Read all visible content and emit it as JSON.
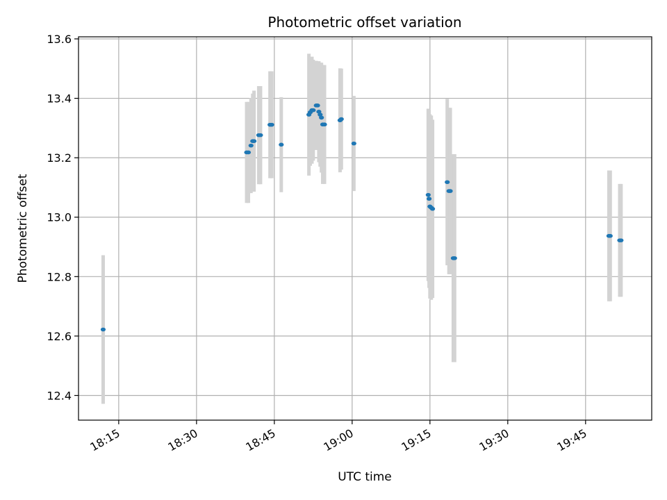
{
  "chart_data": {
    "type": "scatter",
    "title": "Photometric offset variation",
    "xlabel": "UTC time",
    "ylabel": "Photometric offset",
    "x_ticks": [
      "18:15",
      "18:30",
      "18:45",
      "19:00",
      "19:15",
      "19:30",
      "19:45"
    ],
    "y_ticks": [
      "12.4",
      "12.6",
      "12.8",
      "13.0",
      "13.2",
      "13.4",
      "13.6"
    ],
    "xlim": [
      "18:07:15",
      "19:57:45"
    ],
    "ylim": [
      12.317,
      13.607
    ],
    "grid": true,
    "error_bar_color": "#d3d3d3",
    "point_color": "#1f77b4",
    "points": [
      {
        "x": "18:12:00",
        "y": 12.622,
        "yerr": 0.25
      },
      {
        "x": "18:39:40",
        "y": 13.218,
        "yerr": 0.17
      },
      {
        "x": "18:40:00",
        "y": 13.218,
        "yerr": 0.17
      },
      {
        "x": "18:40:30",
        "y": 13.241,
        "yerr": 0.16
      },
      {
        "x": "18:40:50",
        "y": 13.256,
        "yerr": 0.16
      },
      {
        "x": "18:41:05",
        "y": 13.256,
        "yerr": 0.17
      },
      {
        "x": "18:42:00",
        "y": 13.276,
        "yerr": 0.165
      },
      {
        "x": "18:42:20",
        "y": 13.276,
        "yerr": 0.165
      },
      {
        "x": "18:44:10",
        "y": 13.311,
        "yerr": 0.18
      },
      {
        "x": "18:44:30",
        "y": 13.311,
        "yerr": 0.18
      },
      {
        "x": "18:46:20",
        "y": 13.244,
        "yerr": 0.16
      },
      {
        "x": "18:51:40",
        "y": 13.345,
        "yerr": 0.205
      },
      {
        "x": "18:51:55",
        "y": 13.353,
        "yerr": 0.18
      },
      {
        "x": "18:52:15",
        "y": 13.36,
        "yerr": 0.18
      },
      {
        "x": "18:52:30",
        "y": 13.36,
        "yerr": 0.17
      },
      {
        "x": "18:53:05",
        "y": 13.376,
        "yerr": 0.15
      },
      {
        "x": "18:53:20",
        "y": 13.376,
        "yerr": 0.145
      },
      {
        "x": "18:53:35",
        "y": 13.355,
        "yerr": 0.17
      },
      {
        "x": "18:53:50",
        "y": 13.345,
        "yerr": 0.175
      },
      {
        "x": "18:54:05",
        "y": 13.335,
        "yerr": 0.185
      },
      {
        "x": "18:54:20",
        "y": 13.312,
        "yerr": 0.2
      },
      {
        "x": "18:54:40",
        "y": 13.312,
        "yerr": 0.2
      },
      {
        "x": "18:57:40",
        "y": 13.326,
        "yerr": 0.175
      },
      {
        "x": "18:57:55",
        "y": 13.33,
        "yerr": 0.17
      },
      {
        "x": "19:00:20",
        "y": 13.248,
        "yerr": 0.16
      },
      {
        "x": "19:14:40",
        "y": 13.075,
        "yerr": 0.29
      },
      {
        "x": "19:14:50",
        "y": 13.062,
        "yerr": 0.3
      },
      {
        "x": "19:15:00",
        "y": 13.036,
        "yerr": 0.31
      },
      {
        "x": "19:15:15",
        "y": 13.032,
        "yerr": 0.31
      },
      {
        "x": "19:15:30",
        "y": 13.028,
        "yerr": 0.3
      },
      {
        "x": "19:18:20",
        "y": 13.118,
        "yerr": 0.28
      },
      {
        "x": "19:18:40",
        "y": 13.088,
        "yerr": 0.28
      },
      {
        "x": "19:18:55",
        "y": 13.088,
        "yerr": 0.28
      },
      {
        "x": "19:19:30",
        "y": 12.862,
        "yerr": 0.35
      },
      {
        "x": "19:19:45",
        "y": 12.862,
        "yerr": 0.35
      },
      {
        "x": "19:49:30",
        "y": 12.937,
        "yerr": 0.22
      },
      {
        "x": "19:49:45",
        "y": 12.937,
        "yerr": 0.22
      },
      {
        "x": "19:51:35",
        "y": 12.922,
        "yerr": 0.19
      },
      {
        "x": "19:51:50",
        "y": 12.922,
        "yerr": 0.19
      }
    ]
  }
}
